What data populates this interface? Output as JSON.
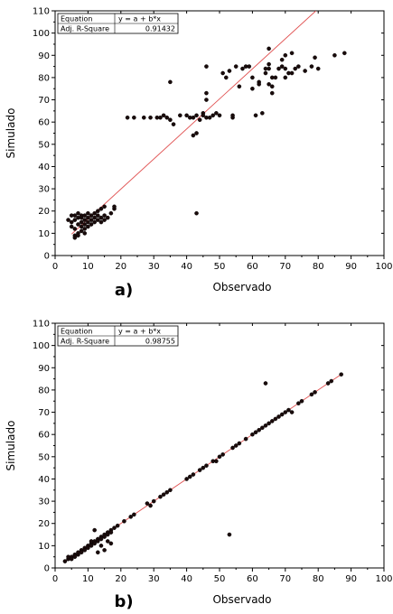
{
  "colors": {
    "point": "#000000",
    "point_fill": "#1a0b0b",
    "fit_line": "#e05050",
    "axis": "#000000"
  },
  "chart_data": [
    {
      "type": "scatter",
      "panel_label": "a)",
      "xlabel": "Observado",
      "ylabel": "Simulado",
      "xlim": [
        0,
        100
      ],
      "ylim": [
        0,
        110
      ],
      "xticks": [
        "0",
        "10",
        "20",
        "30",
        "40",
        "50",
        "60",
        "70",
        "80",
        "90",
        "100"
      ],
      "yticks": [
        "0",
        "10",
        "20",
        "30",
        "40",
        "50",
        "60",
        "70",
        "80",
        "90",
        "100",
        "110"
      ],
      "grid": false,
      "legend_box": {
        "rows": [
          {
            "label": "Equation",
            "value": "y = a + b*x"
          },
          {
            "label": "Adj. R-Square",
            "value": "0.91432"
          }
        ],
        "placement": "top-left"
      },
      "fit_line": {
        "x0": 5,
        "y0": 9.6,
        "x1": 79.3,
        "y1": 110
      },
      "points": [
        [
          4,
          16
        ],
        [
          5,
          18
        ],
        [
          5,
          15
        ],
        [
          5,
          13
        ],
        [
          6,
          9
        ],
        [
          6,
          12
        ],
        [
          6,
          16
        ],
        [
          6,
          18
        ],
        [
          7,
          10
        ],
        [
          7,
          14
        ],
        [
          7,
          17
        ],
        [
          7,
          19
        ],
        [
          8,
          11
        ],
        [
          8,
          13
        ],
        [
          8,
          15
        ],
        [
          8,
          17
        ],
        [
          8,
          18
        ],
        [
          9,
          12
        ],
        [
          9,
          14
        ],
        [
          9,
          16
        ],
        [
          9,
          18
        ],
        [
          10,
          13
        ],
        [
          10,
          15
        ],
        [
          10,
          17
        ],
        [
          10,
          19
        ],
        [
          11,
          14
        ],
        [
          11,
          16
        ],
        [
          11,
          18
        ],
        [
          12,
          15
        ],
        [
          12,
          17
        ],
        [
          12,
          19
        ],
        [
          13,
          16
        ],
        [
          13,
          18
        ],
        [
          14,
          15
        ],
        [
          14,
          17
        ],
        [
          15,
          16
        ],
        [
          15,
          18
        ],
        [
          16,
          17
        ],
        [
          17,
          19
        ],
        [
          18,
          21
        ],
        [
          18,
          22
        ],
        [
          6,
          8
        ],
        [
          7,
          9
        ],
        [
          9,
          10
        ],
        [
          13,
          20
        ],
        [
          14,
          21
        ],
        [
          15,
          22
        ],
        [
          22,
          62
        ],
        [
          24,
          62
        ],
        [
          27,
          62
        ],
        [
          29,
          62
        ],
        [
          31,
          62
        ],
        [
          32,
          62
        ],
        [
          33,
          63
        ],
        [
          34,
          62
        ],
        [
          35,
          61
        ],
        [
          35,
          78
        ],
        [
          36,
          59
        ],
        [
          38,
          63
        ],
        [
          40,
          63
        ],
        [
          41,
          62
        ],
        [
          42,
          62
        ],
        [
          42,
          54
        ],
        [
          43,
          63
        ],
        [
          43,
          55
        ],
        [
          43,
          19
        ],
        [
          44,
          61
        ],
        [
          45,
          64
        ],
        [
          45,
          63
        ],
        [
          46,
          62
        ],
        [
          46,
          70
        ],
        [
          46,
          73
        ],
        [
          46,
          85
        ],
        [
          47,
          62
        ],
        [
          48,
          63
        ],
        [
          49,
          64
        ],
        [
          50,
          63
        ],
        [
          51,
          82
        ],
        [
          52,
          80
        ],
        [
          53,
          83
        ],
        [
          54,
          62
        ],
        [
          54,
          63
        ],
        [
          55,
          85
        ],
        [
          56,
          76
        ],
        [
          57,
          84
        ],
        [
          58,
          85
        ],
        [
          59,
          85
        ],
        [
          60,
          75
        ],
        [
          60,
          80
        ],
        [
          61,
          63
        ],
        [
          62,
          78
        ],
        [
          62,
          77
        ],
        [
          63,
          64
        ],
        [
          64,
          82
        ],
        [
          64,
          84
        ],
        [
          65,
          86
        ],
        [
          65,
          84
        ],
        [
          65,
          93
        ],
        [
          65,
          77
        ],
        [
          66,
          76
        ],
        [
          66,
          73
        ],
        [
          66,
          80
        ],
        [
          67,
          80
        ],
        [
          68,
          84
        ],
        [
          69,
          85
        ],
        [
          69,
          88
        ],
        [
          70,
          84
        ],
        [
          70,
          80
        ],
        [
          70,
          90
        ],
        [
          71,
          82
        ],
        [
          72,
          82
        ],
        [
          72,
          91
        ],
        [
          73,
          84
        ],
        [
          74,
          85
        ],
        [
          76,
          83
        ],
        [
          78,
          85
        ],
        [
          79,
          89
        ],
        [
          80,
          84
        ],
        [
          85,
          90
        ],
        [
          88,
          91
        ]
      ]
    },
    {
      "type": "scatter",
      "panel_label": "b)",
      "xlabel": "Observado",
      "ylabel": "Simulado",
      "xlim": [
        0,
        100
      ],
      "ylim": [
        0,
        110
      ],
      "xticks": [
        "0",
        "10",
        "20",
        "30",
        "40",
        "50",
        "60",
        "70",
        "80",
        "90",
        "100"
      ],
      "yticks": [
        "0",
        "10",
        "20",
        "30",
        "40",
        "50",
        "60",
        "70",
        "80",
        "90",
        "100",
        "110"
      ],
      "grid": false,
      "legend_box": {
        "rows": [
          {
            "label": "Equation",
            "value": "y = a + b*x"
          },
          {
            "label": "Adj. R-Square",
            "value": "0.98755"
          }
        ],
        "placement": "top-left"
      },
      "fit_line": {
        "x0": 3,
        "y0": 3,
        "x1": 87,
        "y1": 87
      },
      "points": [
        [
          3,
          3
        ],
        [
          4,
          4
        ],
        [
          4,
          5
        ],
        [
          5,
          5
        ],
        [
          5,
          4
        ],
        [
          6,
          6
        ],
        [
          6,
          5
        ],
        [
          7,
          6
        ],
        [
          7,
          7
        ],
        [
          8,
          8
        ],
        [
          8,
          7
        ],
        [
          9,
          9
        ],
        [
          9,
          8
        ],
        [
          10,
          10
        ],
        [
          10,
          9
        ],
        [
          11,
          11
        ],
        [
          11,
          10
        ],
        [
          11,
          12
        ],
        [
          12,
          12
        ],
        [
          12,
          11
        ],
        [
          13,
          13
        ],
        [
          13,
          12
        ],
        [
          14,
          14
        ],
        [
          14,
          13
        ],
        [
          15,
          15
        ],
        [
          15,
          14
        ],
        [
          16,
          16
        ],
        [
          16,
          15
        ],
        [
          17,
          17
        ],
        [
          17,
          16
        ],
        [
          18,
          18
        ],
        [
          12,
          17
        ],
        [
          13,
          7
        ],
        [
          15,
          8
        ],
        [
          14,
          10
        ],
        [
          16,
          12
        ],
        [
          17,
          11
        ],
        [
          19,
          19
        ],
        [
          21,
          21
        ],
        [
          23,
          23
        ],
        [
          24,
          24
        ],
        [
          28,
          29
        ],
        [
          29,
          28
        ],
        [
          30,
          30
        ],
        [
          32,
          32
        ],
        [
          33,
          33
        ],
        [
          34,
          34
        ],
        [
          35,
          35
        ],
        [
          40,
          40
        ],
        [
          41,
          41
        ],
        [
          42,
          42
        ],
        [
          44,
          44
        ],
        [
          45,
          45
        ],
        [
          46,
          46
        ],
        [
          48,
          48
        ],
        [
          49,
          48
        ],
        [
          50,
          50
        ],
        [
          51,
          51
        ],
        [
          53,
          15
        ],
        [
          54,
          54
        ],
        [
          55,
          55
        ],
        [
          56,
          56
        ],
        [
          58,
          58
        ],
        [
          60,
          60
        ],
        [
          61,
          61
        ],
        [
          62,
          62
        ],
        [
          63,
          63
        ],
        [
          64,
          64
        ],
        [
          64,
          83
        ],
        [
          65,
          65
        ],
        [
          66,
          66
        ],
        [
          67,
          67
        ],
        [
          68,
          68
        ],
        [
          69,
          69
        ],
        [
          70,
          70
        ],
        [
          71,
          71
        ],
        [
          72,
          70
        ],
        [
          74,
          74
        ],
        [
          75,
          75
        ],
        [
          78,
          78
        ],
        [
          79,
          79
        ],
        [
          83,
          83
        ],
        [
          84,
          84
        ],
        [
          87,
          87
        ]
      ]
    }
  ]
}
